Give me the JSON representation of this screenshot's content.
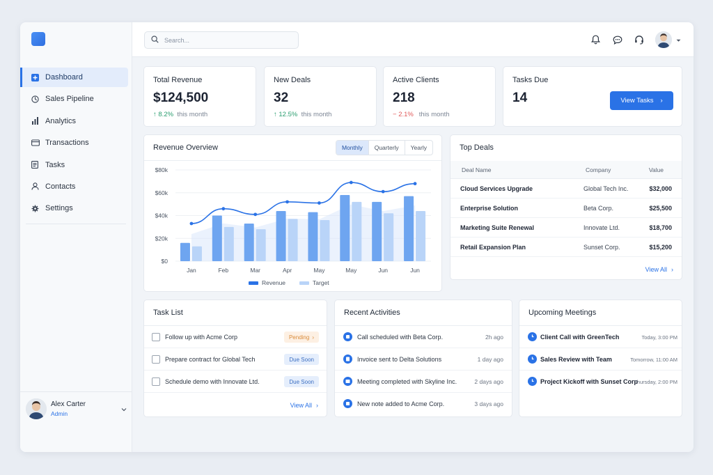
{
  "sidebar": {
    "items": [
      {
        "label": "Dashboard",
        "icon": "dashboard-icon"
      },
      {
        "label": "Sales Pipeline",
        "icon": "pipeline-icon"
      },
      {
        "label": "Analytics",
        "icon": "bar-chart-icon"
      },
      {
        "label": "Transactions",
        "icon": "card-icon"
      },
      {
        "label": "Tasks",
        "icon": "clipboard-icon"
      },
      {
        "label": "Contacts",
        "icon": "user-icon"
      },
      {
        "label": "Settings",
        "icon": "gear-icon"
      }
    ],
    "user": {
      "name": "Alex Carter",
      "role": "Admin"
    }
  },
  "topbar": {
    "search_placeholder": "Search...",
    "icons": [
      "bell-icon",
      "chat-icon",
      "headset-icon",
      "avatar",
      "chevron-down-icon"
    ]
  },
  "stats": [
    {
      "title": "Total Revenue",
      "value": "$124,500",
      "change": "8.2%",
      "direction": "up",
      "period": "this month"
    },
    {
      "title": "New Deals",
      "value": "32",
      "change": "12.5%",
      "direction": "up",
      "period": "this month"
    },
    {
      "title": "Active Clients",
      "value": "218",
      "change": "2.1%",
      "direction": "down",
      "period": "this month"
    },
    {
      "title": "Tasks Due",
      "value": "14",
      "button": "View Tasks"
    }
  ],
  "revenue": {
    "title": "Revenue Overview",
    "tabs": [
      "Monthly",
      "Quarterly",
      "Yearly"
    ],
    "active_tab": "Monthly",
    "legend": [
      "Revenue",
      "Target"
    ]
  },
  "chart_data": {
    "type": "bar",
    "categories": [
      "Jan",
      "Feb",
      "Mar",
      "Apr",
      "May",
      "May",
      "Jun",
      "Jun"
    ],
    "series": [
      {
        "name": "Revenue",
        "values": [
          16,
          40,
          33,
          44,
          43,
          58,
          52,
          57
        ]
      },
      {
        "name": "Target",
        "values": [
          13,
          30,
          28,
          37,
          36,
          52,
          42,
          44
        ]
      }
    ],
    "line": [
      33,
      46,
      41,
      52,
      51,
      69,
      61,
      68
    ],
    "yticks": [
      "$0",
      "$20k",
      "$40k",
      "$60k",
      "$80k"
    ],
    "ylim": [
      0,
      80
    ],
    "colors": {
      "revenue": "#6ea5f0",
      "target": "#b9d4f8",
      "line": "#2a72e6"
    }
  },
  "top_deals": {
    "title": "Top Deals",
    "columns": [
      "Deal Name",
      "Company",
      "Value"
    ],
    "rows": [
      {
        "name": "Cloud Services Upgrade",
        "company": "Global Tech Inc.",
        "value": "$32,000"
      },
      {
        "name": "Enterprise Solution",
        "company": "Beta Corp.",
        "value": "$25,500"
      },
      {
        "name": "Marketing Suite Renewal",
        "company": "Innovate Ltd.",
        "value": "$18,700"
      },
      {
        "name": "Retail Expansion Plan",
        "company": "Sunset Corp.",
        "value": "$15,200"
      }
    ],
    "view_all": "View All"
  },
  "tasks": {
    "title": "Task List",
    "items": [
      {
        "label": "Follow up with Acme Corp",
        "tag": "Pending",
        "tag_type": "pending"
      },
      {
        "label": "Prepare contract for Global Tech",
        "tag": "Due Soon",
        "tag_type": "soon"
      },
      {
        "label": "Schedule demo with Innovate Ltd.",
        "tag": "Due Soon",
        "tag_type": "soon"
      }
    ],
    "view_all": "View All"
  },
  "activities": {
    "title": "Recent Activities",
    "items": [
      {
        "label": "Call scheduled with Beta Corp.",
        "time": "2h ago"
      },
      {
        "label": "Invoice sent to Delta Solutions",
        "time": "1 day ago"
      },
      {
        "label": "Meeting completed with Skyline Inc.",
        "time": "2 days ago"
      },
      {
        "label": "New note added to Acme Corp.",
        "time": "3 days ago"
      }
    ]
  },
  "meetings": {
    "title": "Upcoming Meetings",
    "items": [
      {
        "label": "Client Call with GreenTech",
        "time": "Today, 3:00 PM"
      },
      {
        "label": "Sales Review with Team",
        "time": "Tomorrow, 11:00 AM"
      },
      {
        "label": "Project Kickoff with Sunset Corp",
        "time": "Thursday, 2:00 PM"
      }
    ]
  }
}
